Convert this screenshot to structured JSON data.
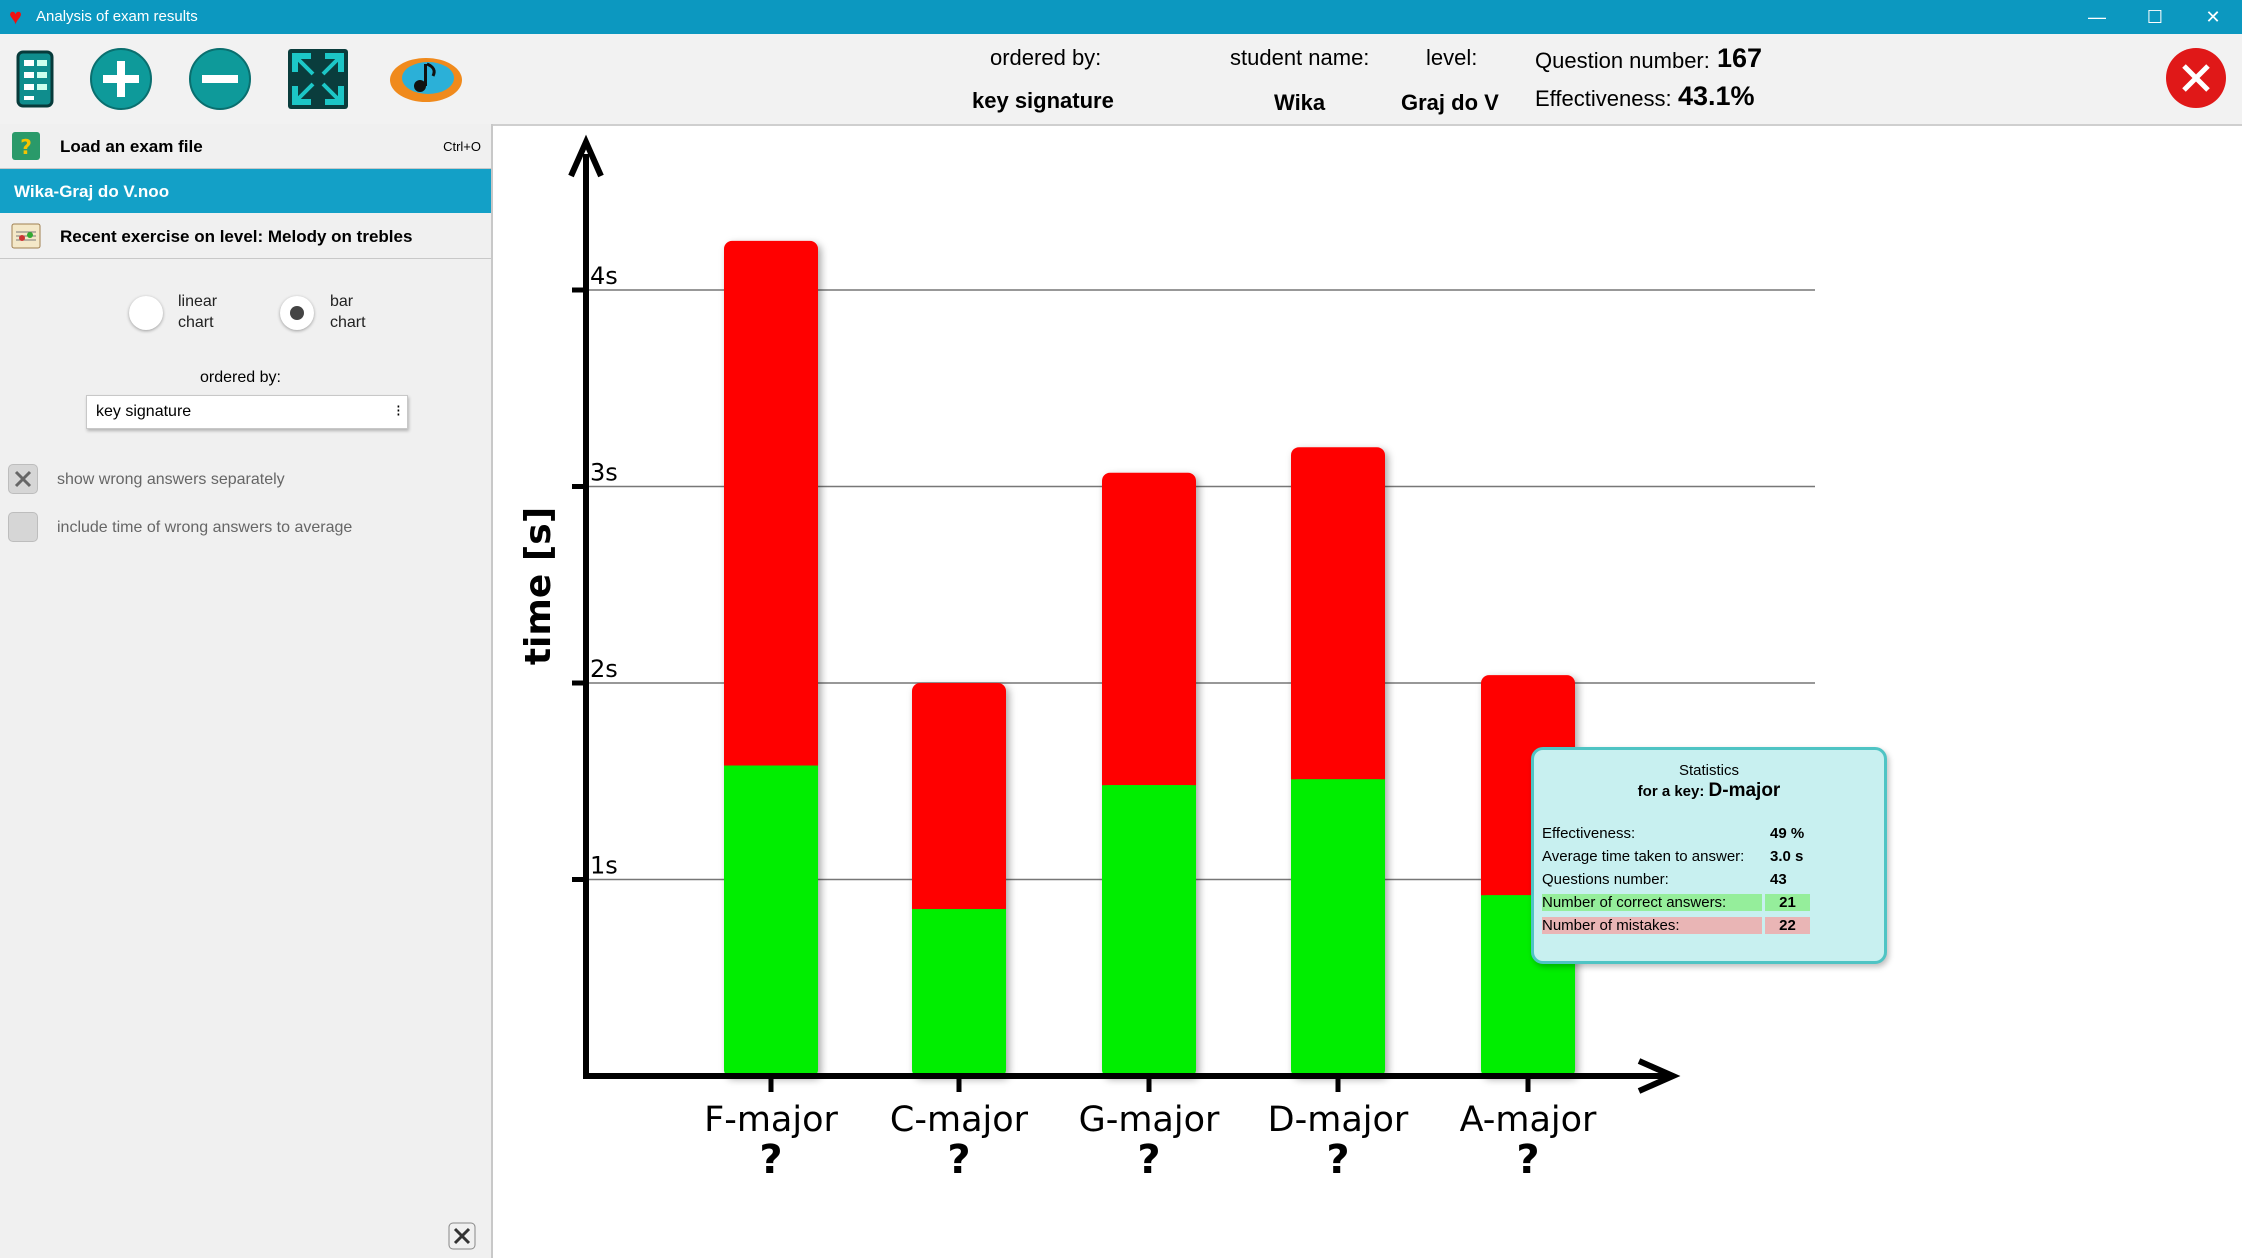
{
  "window": {
    "title": "Analysis of exam results",
    "minimize": "—",
    "maximize": "☐",
    "close": "✕"
  },
  "header": {
    "ordered_by_label": "ordered by:",
    "ordered_by_value": "key signature",
    "student_name_label": "student name:",
    "student_name_value": "Wika",
    "level_label": "level:",
    "level_value": "Graj do V",
    "question_number_label": "Question number:",
    "question_number_value": "167",
    "effectiveness_label": "Effectiveness:",
    "effectiveness_value": "43.1%"
  },
  "sidebar": {
    "load_exam": "Load an exam file",
    "load_shortcut": "Ctrl+O",
    "selected_file": "Wika-Graj do V.noo",
    "recent_exercise": "Recent exercise on level: Melody on trebles",
    "radio_linear_1": "linear",
    "radio_linear_2": "chart",
    "radio_bar_1": "bar",
    "radio_bar_2": "chart",
    "chart_type_selected": "bar",
    "ordered_by": "ordered by:",
    "order_select": "key signature",
    "show_wrong": "show wrong answers separately",
    "include_time": "include time of wrong answers to average"
  },
  "chart_data": {
    "type": "bar",
    "stacked": true,
    "ylabel": "time [s]",
    "ylim": [
      0,
      4.6
    ],
    "yticks": [
      "1s",
      "2s",
      "3s",
      "4s"
    ],
    "categories": [
      "F-major",
      "C-major",
      "G-major",
      "D-major",
      "A-major"
    ],
    "category_marks": [
      "?",
      "?",
      "?",
      "?",
      "?"
    ],
    "series": [
      {
        "color": "#00ee00",
        "values": [
          1.58,
          0.85,
          1.48,
          1.51,
          0.92
        ]
      },
      {
        "color": "#ff0000",
        "values": [
          2.67,
          1.15,
          1.59,
          1.69,
          1.12
        ]
      }
    ],
    "grid": true
  },
  "tooltip": {
    "heading": "Statistics",
    "for_key_label": "for a key:",
    "for_key_value": "D-major",
    "rows": [
      {
        "label": "Effectiveness:",
        "value": "49 %"
      },
      {
        "label": "Average time taken to answer:",
        "value": "3.0 s"
      },
      {
        "label": "Questions number:",
        "value": "43"
      },
      {
        "label": "Number of correct answers:",
        "value": "21"
      },
      {
        "label": "Number of mistakes:",
        "value": "22"
      }
    ]
  }
}
